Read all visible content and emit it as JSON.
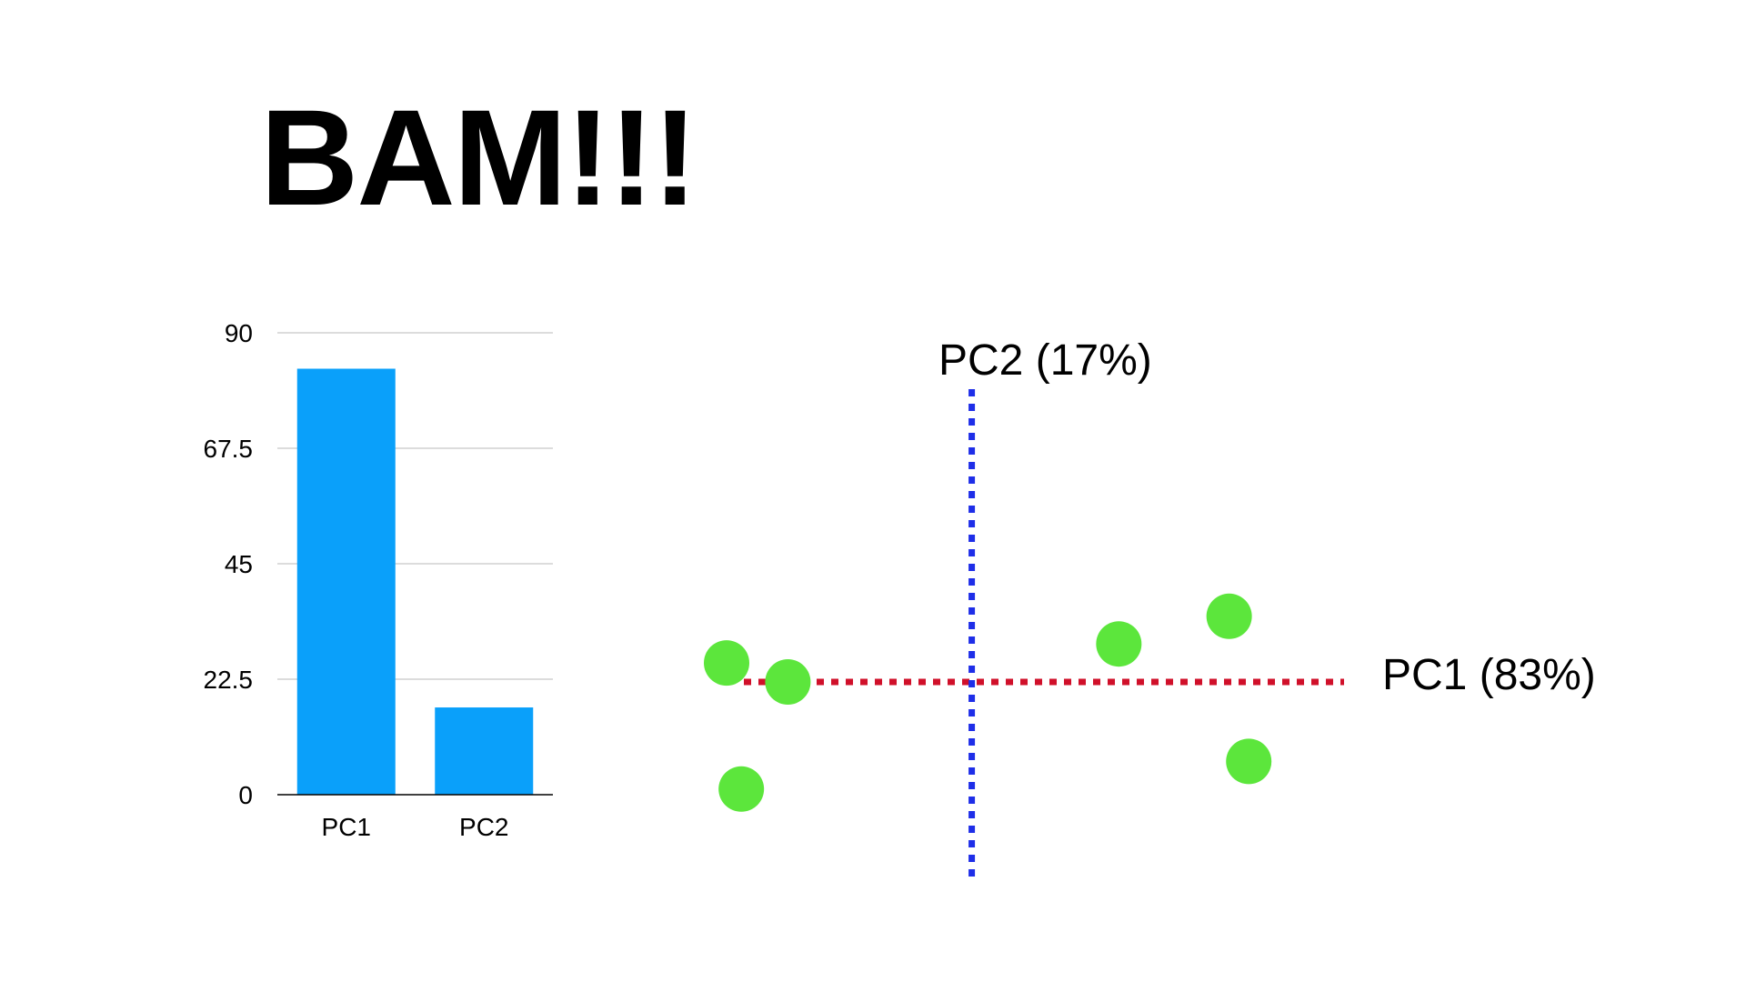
{
  "headline": "BAM!!!",
  "colors": {
    "bar": "#0aa0fa",
    "point": "#5ce63c",
    "pc1_axis": "#d0102a",
    "pc2_axis": "#1e2ee8",
    "grid": "#d0d0d0"
  },
  "chart_data": [
    {
      "type": "bar",
      "categories": [
        "PC1",
        "PC2"
      ],
      "values": [
        83,
        17
      ],
      "yticks": [
        "0",
        "22.5",
        "45",
        "67.5",
        "90"
      ],
      "ylim": [
        0,
        90
      ],
      "grid": true,
      "title": "",
      "xlabel": "",
      "ylabel": ""
    },
    {
      "type": "scatter",
      "x_axis_label": "PC1 (83%)",
      "y_axis_label": "PC2 (17%)",
      "xlim": [
        -10,
        14
      ],
      "ylim": [
        -7,
        10
      ],
      "grid": false,
      "points": [
        {
          "x": -10,
          "y": 0.55
        },
        {
          "x": -7.5,
          "y": 0
        },
        {
          "x": -9.4,
          "y": -3.1
        },
        {
          "x": 6.0,
          "y": 1.1
        },
        {
          "x": 10.5,
          "y": 1.9
        },
        {
          "x": 11.3,
          "y": -2.3
        }
      ]
    }
  ]
}
